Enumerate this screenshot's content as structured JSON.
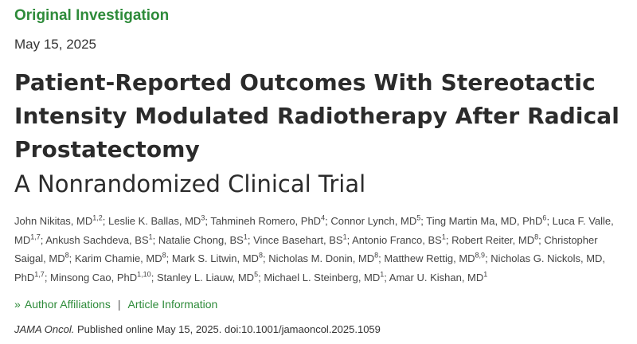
{
  "article": {
    "section_label": "Original Investigation",
    "date": "May 15, 2025",
    "title": "Patient-Reported Outcomes With Stereotactic Intensity Modulated Radiotherapy After Radical Prostatectomy",
    "subtitle": "A Nonrandomized Clinical Trial"
  },
  "authors": [
    {
      "name": "John Nikitas, MD",
      "sup": "1,2"
    },
    {
      "name": "Leslie K. Ballas, MD",
      "sup": "3"
    },
    {
      "name": "Tahmineh Romero, PhD",
      "sup": "4"
    },
    {
      "name": "Connor Lynch, MD",
      "sup": "5"
    },
    {
      "name": "Ting Martin Ma, MD, PhD",
      "sup": "6"
    },
    {
      "name": "Luca F. Valle, MD",
      "sup": "1,7"
    },
    {
      "name": "Ankush Sachdeva, BS",
      "sup": "1"
    },
    {
      "name": "Natalie Chong, BS",
      "sup": "1"
    },
    {
      "name": "Vince Basehart, BS",
      "sup": "1"
    },
    {
      "name": "Antonio Franco, BS",
      "sup": "1"
    },
    {
      "name": "Robert Reiter, MD",
      "sup": "8"
    },
    {
      "name": "Christopher Saigal, MD",
      "sup": "8"
    },
    {
      "name": "Karim Chamie, MD",
      "sup": "8"
    },
    {
      "name": "Mark S. Litwin, MD",
      "sup": "8"
    },
    {
      "name": "Nicholas M. Donin, MD",
      "sup": "8"
    },
    {
      "name": "Matthew Rettig, MD",
      "sup": "8,9"
    },
    {
      "name": "Nicholas G. Nickols, MD, PhD",
      "sup": "1,7"
    },
    {
      "name": "Minsong Cao, PhD",
      "sup": "1,10"
    },
    {
      "name": "Stanley L. Liauw, MD",
      "sup": "5"
    },
    {
      "name": "Michael L. Steinberg, MD",
      "sup": "1"
    },
    {
      "name": "Amar U. Kishan, MD",
      "sup": "1"
    }
  ],
  "links": {
    "chevron_glyph": "»",
    "author_affiliations": "Author Affiliations",
    "separator": "|",
    "article_information": "Article Information"
  },
  "citation": {
    "journal": "JAMA Oncol.",
    "text": " Published online May 15, 2025. doi:10.1001/jamaoncol.2025.1059"
  },
  "colors": {
    "accent_green": "#2e8b3a",
    "text": "#333333"
  }
}
